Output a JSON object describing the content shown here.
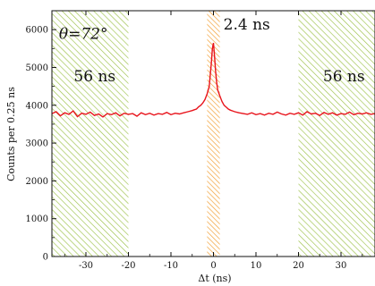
{
  "chart_data": {
    "type": "line",
    "title": "",
    "xlabel": "Δt (ns)",
    "ylabel": "Counts per 0.25 ns",
    "xlim": [
      -38,
      38
    ],
    "ylim": [
      0,
      6500
    ],
    "x_ticks": [
      -30,
      -20,
      -10,
      0,
      10,
      20,
      30
    ],
    "y_ticks": [
      0,
      1000,
      2000,
      3000,
      4000,
      5000,
      6000
    ],
    "grid": false,
    "line_color": "#e8141c",
    "series": [
      {
        "x": [
          -38,
          -37,
          -36,
          -35,
          -34,
          -33,
          -32,
          -31,
          -30,
          -29,
          -28,
          -27,
          -26,
          -25,
          -24,
          -23,
          -22,
          -21,
          -20,
          -19,
          -18,
          -17,
          -16,
          -15,
          -14,
          -13,
          -12,
          -11,
          -10,
          -9,
          -8,
          -7,
          -6,
          -5,
          -4.5,
          -4,
          -3.5,
          -3,
          -2.5,
          -2,
          -1.5,
          -1,
          -0.75,
          -0.5,
          -0.25,
          0,
          0.25,
          0.5,
          0.75,
          1,
          1.5,
          2,
          2.5,
          3,
          3.5,
          4,
          4.5,
          5,
          6,
          7,
          8,
          9,
          10,
          11,
          12,
          13,
          14,
          15,
          16,
          17,
          18,
          19,
          20,
          21,
          22,
          23,
          24,
          25,
          26,
          27,
          28,
          29,
          30,
          31,
          32,
          33,
          34,
          35,
          36,
          37,
          38
        ],
        "y": [
          3780,
          3830,
          3720,
          3800,
          3760,
          3850,
          3700,
          3790,
          3760,
          3820,
          3730,
          3770,
          3690,
          3780,
          3750,
          3800,
          3720,
          3790,
          3760,
          3780,
          3710,
          3800,
          3750,
          3790,
          3740,
          3780,
          3760,
          3810,
          3750,
          3790,
          3770,
          3800,
          3830,
          3860,
          3880,
          3900,
          3960,
          4000,
          4060,
          4150,
          4300,
          4500,
          4800,
          5100,
          5500,
          5650,
          5300,
          4900,
          4600,
          4400,
          4250,
          4100,
          4000,
          3950,
          3900,
          3870,
          3850,
          3830,
          3800,
          3780,
          3760,
          3800,
          3750,
          3780,
          3740,
          3790,
          3760,
          3820,
          3770,
          3740,
          3790,
          3760,
          3800,
          3740,
          3830,
          3770,
          3790,
          3730,
          3810,
          3760,
          3800,
          3740,
          3780,
          3760,
          3820,
          3750,
          3790,
          3770,
          3800,
          3760,
          3780
        ]
      }
    ],
    "regions": [
      {
        "x": [
          -38,
          -20
        ],
        "label": "56 ns",
        "color": "#9dc24a"
      },
      {
        "x": [
          -1.5,
          1.5
        ],
        "label": "2.4 ns",
        "color": "#f2a33a"
      },
      {
        "x": [
          20,
          38
        ],
        "label": "56 ns",
        "color": "#9dc24a"
      }
    ],
    "annotations": [
      {
        "text": "θ=72°",
        "x": -35.5,
        "y": 5900
      }
    ]
  }
}
